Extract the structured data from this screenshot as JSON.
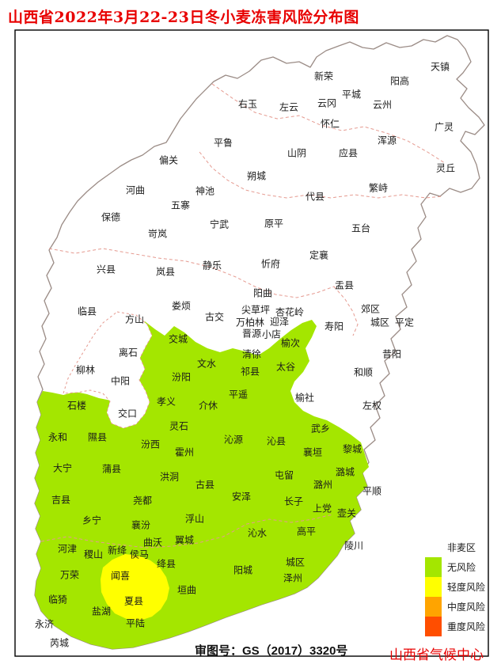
{
  "title": "山西省2022年3月22-23日冬小麦冻害风险分布图",
  "footer": {
    "approval_number": "审图号：GS（2017）3320号",
    "credit": "山西省气候中心"
  },
  "legend": {
    "items": [
      {
        "label": "非麦区",
        "color": null
      },
      {
        "label": "无风险",
        "color": "#a4e600"
      },
      {
        "label": "轻度风险",
        "color": "#ffff00"
      },
      {
        "label": "中度风险",
        "color": "#ffa400"
      },
      {
        "label": "重度风险",
        "color": "#ff4e00"
      }
    ]
  },
  "colors": {
    "risk_none_green": "#a4e600",
    "risk_light_yellow": "#ffff00",
    "risk_moderate_orange": "#ffa400",
    "risk_severe_red": "#ff4e00",
    "province_border": "#9b8c86",
    "city_border_dash": "#e59a90",
    "title_red": "#e80000",
    "non_wheat_fill": "#ffffff"
  },
  "map": {
    "counties": [
      [
        "天镇",
        556,
        85
      ],
      [
        "阳高",
        505,
        103
      ],
      [
        "新荣",
        409,
        97
      ],
      [
        "右玉",
        313,
        132
      ],
      [
        "左云",
        365,
        136
      ],
      [
        "云冈",
        413,
        131
      ],
      [
        "平城",
        444,
        120
      ],
      [
        "云州",
        483,
        133
      ],
      [
        "怀仁",
        417,
        157
      ],
      [
        "广灵",
        561,
        161
      ],
      [
        "浑源",
        489,
        178
      ],
      [
        "平鲁",
        282,
        181
      ],
      [
        "山阴",
        375,
        194
      ],
      [
        "应县",
        440,
        194
      ],
      [
        "灵丘",
        563,
        213
      ],
      [
        "朔城",
        324,
        223
      ],
      [
        "偏关",
        213,
        203
      ],
      [
        "河曲",
        171,
        241
      ],
      [
        "神池",
        259,
        242
      ],
      [
        "五寨",
        228,
        260
      ],
      [
        "保德",
        140,
        275
      ],
      [
        "宁武",
        277,
        284
      ],
      [
        "原平",
        346,
        283
      ],
      [
        "岢岚",
        199,
        296
      ],
      [
        "代县",
        398,
        249
      ],
      [
        "繁峙",
        478,
        238
      ],
      [
        "五台",
        456,
        289
      ],
      [
        "定襄",
        403,
        323
      ],
      [
        "忻府",
        342,
        334
      ],
      [
        "静乐",
        268,
        336
      ],
      [
        "兴县",
        134,
        341
      ],
      [
        "岚县",
        209,
        344
      ],
      [
        "盂县",
        435,
        361
      ],
      [
        "阳曲",
        332,
        371
      ],
      [
        "临县",
        110,
        394
      ],
      [
        "娄烦",
        229,
        387
      ],
      [
        "古交",
        271,
        401
      ],
      [
        "尖草坪",
        323,
        392
      ],
      [
        "杏花岭",
        366,
        395
      ],
      [
        "万柏林",
        316,
        408
      ],
      [
        "迎泽",
        353,
        407
      ],
      [
        "晋源",
        318,
        422
      ],
      [
        "小店",
        343,
        423
      ],
      [
        "郊区",
        468,
        391
      ],
      [
        "城区",
        480,
        408
      ],
      [
        "平定",
        511,
        408
      ],
      [
        "寿阳",
        422,
        413
      ],
      [
        "昔阳",
        495,
        448
      ],
      [
        "和顺",
        459,
        471
      ],
      [
        "左权",
        470,
        513
      ],
      [
        "榆社",
        385,
        503
      ],
      [
        "方山",
        170,
        404
      ],
      [
        "离石",
        162,
        446
      ],
      [
        "柳林",
        108,
        468
      ],
      [
        "中阳",
        152,
        482
      ],
      [
        "交口",
        161,
        523
      ],
      [
        "交城",
        225,
        429
      ],
      [
        "榆次",
        367,
        434
      ],
      [
        "清徐",
        318,
        448
      ],
      [
        "文水",
        261,
        460
      ],
      [
        "太谷",
        361,
        464
      ],
      [
        "祁县",
        316,
        470
      ],
      [
        "汾阳",
        229,
        477
      ],
      [
        "平遥",
        301,
        499
      ],
      [
        "孝义",
        210,
        508
      ],
      [
        "介休",
        263,
        513
      ],
      [
        "石楼",
        97,
        513
      ],
      [
        "灵石",
        226,
        539
      ],
      [
        "永和",
        73,
        553
      ],
      [
        "隰县",
        123,
        553
      ],
      [
        "沁源",
        295,
        556
      ],
      [
        "沁县",
        349,
        558
      ],
      [
        "汾西",
        190,
        562
      ],
      [
        "霍州",
        233,
        572
      ],
      [
        "武乡",
        405,
        542
      ],
      [
        "襄垣",
        395,
        572
      ],
      [
        "黎城",
        445,
        568
      ],
      [
        "大宁",
        79,
        592
      ],
      [
        "蒲县",
        141,
        593
      ],
      [
        "屯留",
        359,
        601
      ],
      [
        "潞城",
        436,
        597
      ],
      [
        "洪洞",
        214,
        603
      ],
      [
        "古县",
        259,
        613
      ],
      [
        "潞州",
        408,
        613
      ],
      [
        "平顺",
        470,
        621
      ],
      [
        "吉县",
        77,
        632
      ],
      [
        "尧都",
        180,
        633
      ],
      [
        "安泽",
        305,
        628
      ],
      [
        "长子",
        371,
        634
      ],
      [
        "上党",
        407,
        643
      ],
      [
        "壶关",
        438,
        649
      ],
      [
        "乡宁",
        116,
        658
      ],
      [
        "襄汾",
        178,
        664
      ],
      [
        "浮山",
        246,
        656
      ],
      [
        "沁水",
        325,
        674
      ],
      [
        "高平",
        387,
        672
      ],
      [
        "曲沃",
        193,
        686
      ],
      [
        "翼城",
        233,
        683
      ],
      [
        "陵川",
        447,
        690
      ],
      [
        "河津",
        85,
        694
      ],
      [
        "新绛",
        148,
        696
      ],
      [
        "稷山",
        118,
        701
      ],
      [
        "侯马",
        176,
        701
      ],
      [
        "城区",
        373,
        711
      ],
      [
        "绛县",
        210,
        713
      ],
      [
        "阳城",
        307,
        721
      ],
      [
        "泽州",
        370,
        731
      ],
      [
        "万荣",
        88,
        727
      ],
      [
        "垣曲",
        236,
        746
      ],
      [
        "临猗",
        73,
        758
      ],
      [
        "盐湖",
        128,
        773
      ],
      [
        "平陆",
        171,
        788
      ],
      [
        "永济",
        56,
        789
      ],
      [
        "芮城",
        75,
        813
      ],
      [
        "闻喜",
        152,
        728
      ],
      [
        "夏县",
        169,
        760
      ]
    ]
  }
}
